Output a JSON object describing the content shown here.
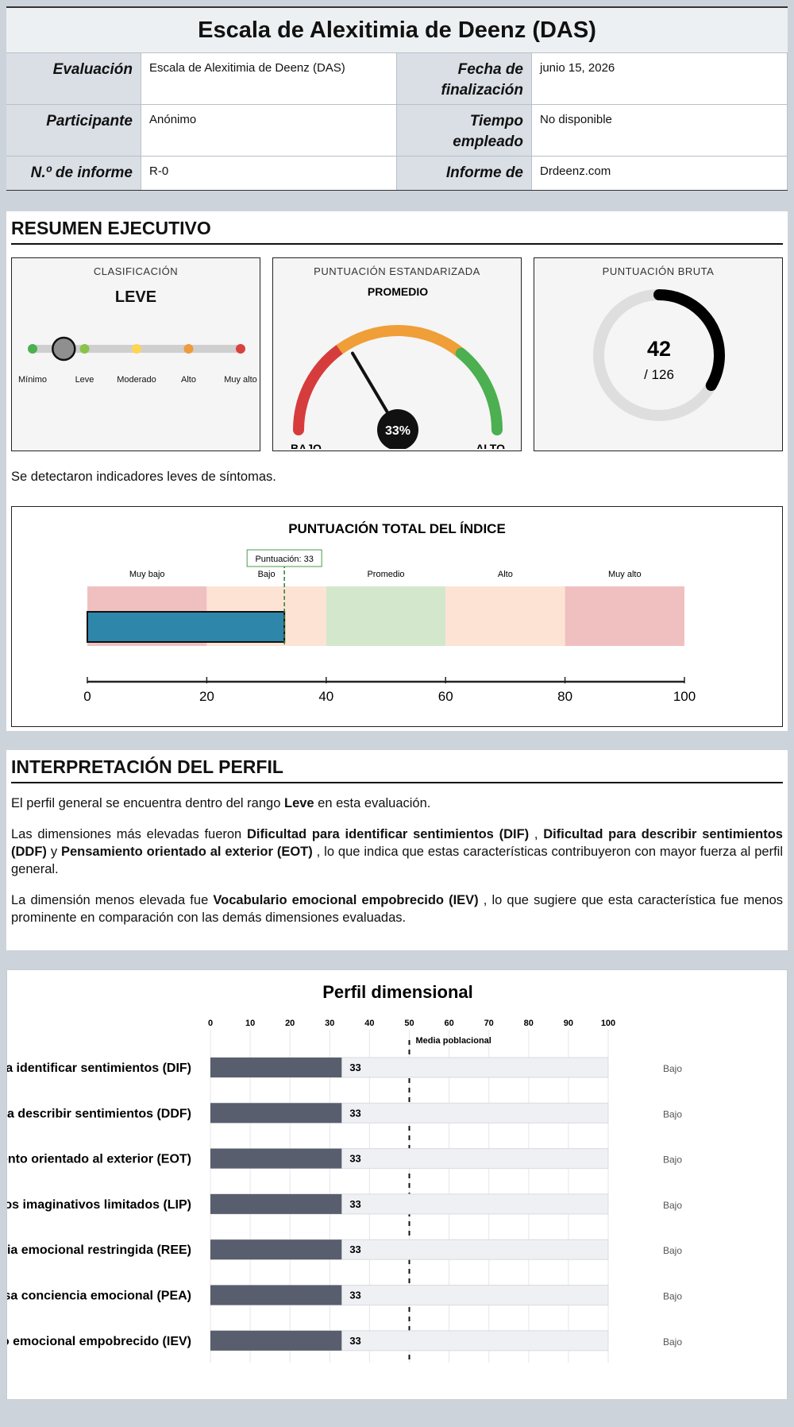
{
  "header": {
    "title": "Escala de Alexitimia de Deenz (DAS)",
    "rows": [
      {
        "label1": "Evaluación",
        "value1": "Escala de Alexitimia de Deenz (DAS)",
        "label2": "Fecha de finalización",
        "value2": "junio 15, 2026"
      },
      {
        "label1": "Participante",
        "value1": "Anónimo",
        "label2": "Tiempo empleado",
        "value2": "No disponible"
      },
      {
        "label1": "N.º de informe",
        "value1": "R-0",
        "label2": "Informe de",
        "value2": "Drdeenz.com"
      }
    ]
  },
  "summary": {
    "title": "RESUMEN EJECUTIVO",
    "classification": {
      "caption": "CLASIFICACIÓN",
      "value": "LEVE",
      "levels": [
        "Mínimo",
        "Leve",
        "Moderado",
        "Alto",
        "Muy alto"
      ],
      "level_colors": [
        "#4caf50",
        "#8bc34a",
        "#ffd54f",
        "#ef9a3c",
        "#d9413f"
      ],
      "selected_index": 0.6
    },
    "standard": {
      "caption": "PUNTUACIÓN ESTANDARIZADA",
      "label_top": "PROMEDIO",
      "label_low": "BAJO",
      "label_high": "ALTO",
      "value_text": "33%",
      "value": 33
    },
    "raw": {
      "caption": "PUNTUACIÓN BRUTA",
      "value": "42",
      "max": "/ 126",
      "value_num": 42,
      "max_num": 126
    },
    "text": "Se detectaron indicadores leves de síntomas."
  },
  "index_chart": {
    "title": "PUNTUACIÓN TOTAL DEL ÍNDICE",
    "bands": [
      {
        "label": "Muy bajo",
        "from": 0,
        "to": 20,
        "color": "#f0c0c0"
      },
      {
        "label": "Bajo",
        "from": 20,
        "to": 40,
        "color": "#fde3d3"
      },
      {
        "label": "Promedio",
        "from": 40,
        "to": 60,
        "color": "#d3e7cc"
      },
      {
        "label": "Alto",
        "from": 60,
        "to": 80,
        "color": "#fde3d3"
      },
      {
        "label": "Muy alto",
        "from": 80,
        "to": 100,
        "color": "#f0c0c0"
      }
    ],
    "score": 33,
    "score_label": "Puntuación: 33",
    "bar_color": "#2e86ab",
    "ticks": [
      "0",
      "20",
      "40",
      "60",
      "80",
      "100"
    ]
  },
  "interpretation": {
    "title": "INTERPRETACIÓN DEL PERFIL",
    "p1": {
      "pre": "El perfil general se encuentra dentro del rango ",
      "bold": "Leve",
      "post": " en esta evaluación."
    },
    "p2": {
      "pre": "Las dimensiones más elevadas fueron ",
      "b1": "Dificultad para identificar sentimientos (DIF)",
      "sep1": " , ",
      "b2": "Dificultad para describir sentimientos (DDF)",
      "sep2": " y ",
      "b3": "Pensamiento orientado al exterior (EOT)",
      "post": " , lo que indica que estas características contribuyeron con mayor fuerza al perfil general."
    },
    "p3": {
      "pre": "La dimensión menos elevada fue ",
      "bold": "Vocabulario emocional empobrecido (IEV)",
      "post": " , lo que sugiere que esta característica fue menos prominente en comparación con las demás dimensiones evaluadas."
    }
  },
  "chart_data": {
    "type": "bar",
    "title": "Perfil dimensional",
    "categories": [
      "Dificultad para identificar sentimientos (DIF)",
      "Dificultad para describir sentimientos (DDF)",
      "Pensamiento orientado al exterior (EOT)",
      "Procesos imaginativos limitados (LIP)",
      "Experiencia emocional restringida (REE)",
      "Escasa conciencia emocional (PEA)",
      "Vocabulario emocional empobrecido (IEV)"
    ],
    "values": [
      33,
      33,
      33,
      33,
      33,
      33,
      33
    ],
    "levels": [
      "Bajo",
      "Bajo",
      "Bajo",
      "Bajo",
      "Bajo",
      "Bajo",
      "Bajo"
    ],
    "xlim": [
      0,
      100
    ],
    "xticks": [
      "0",
      "10",
      "20",
      "30",
      "40",
      "50",
      "60",
      "70",
      "80",
      "90",
      "100"
    ],
    "reference": {
      "label": "Media poblacional",
      "value": 50
    },
    "bar_color": "#595e6e",
    "track_color": "#eef0f3"
  }
}
